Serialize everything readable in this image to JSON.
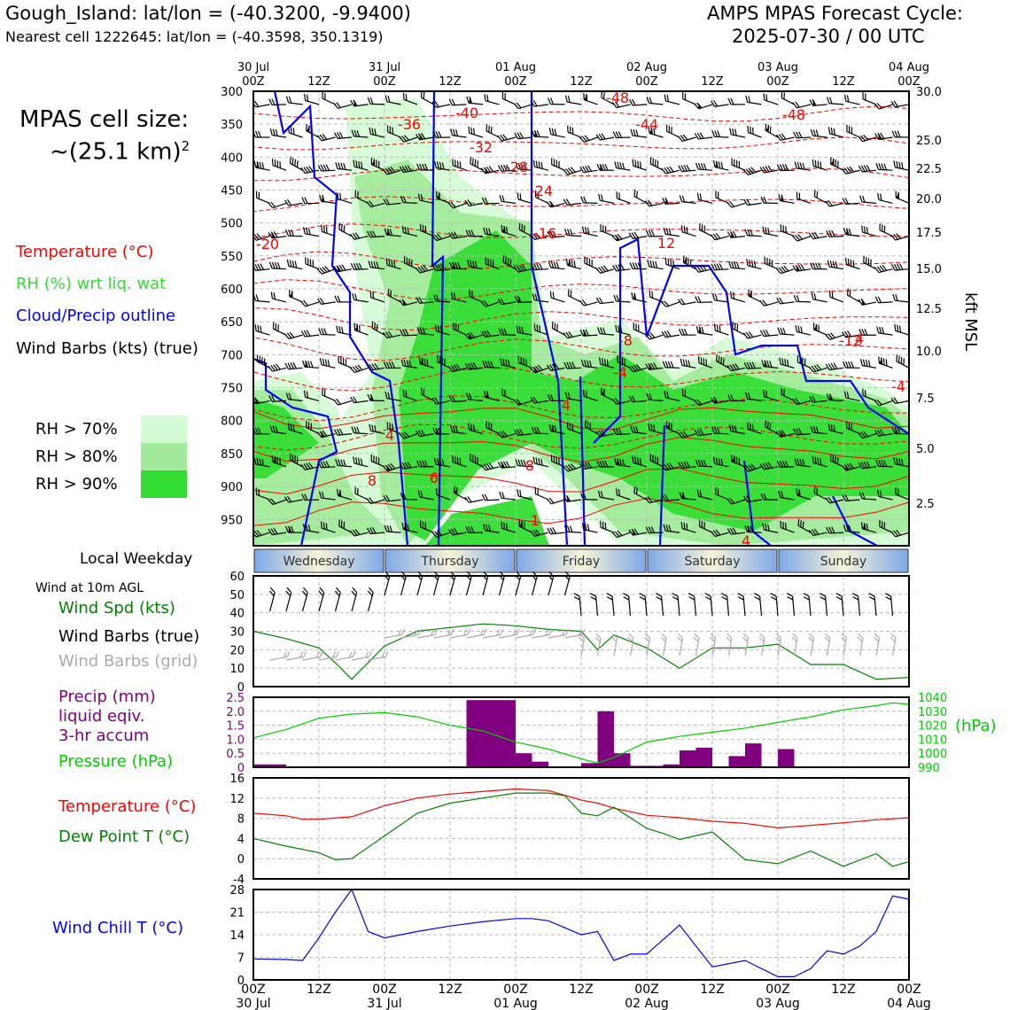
{
  "header": {
    "station_line": "Gough_Island: lat/lon = (-40.3200, -9.9400)",
    "cell_line": "Nearest cell 1222645: lat/lon = (-40.3598, 350.1319)",
    "model_title": "AMPS MPAS Forecast Cycle:",
    "model_cycle": "2025-07-30 / 00 UTC"
  },
  "left_panel": {
    "cell_size_title": "MPAS cell size:",
    "cell_size_value": "~(25.1 km)",
    "cell_size_exp": "2",
    "legend_temperature": "Temperature (°C)",
    "legend_rh": "RH (%) wrt liq. wat",
    "legend_cloud": "Cloud/Precip outline",
    "legend_wind": "Wind Barbs (kts) (true)",
    "rh_70": "RH > 70%",
    "rh_80": "RH > 80%",
    "rh_90": "RH > 90%",
    "local_weekday": "Local Weekday",
    "wind_10m": "Wind at 10m AGL",
    "wind_spd": "Wind Spd (kts)",
    "barbs_true": "Wind Barbs (true)",
    "barbs_grid": "Wind Barbs (grid)",
    "precip_1": "Precip (mm)",
    "precip_2": "liquid eqiv.",
    "precip_3": "3-hr accum",
    "pressure": "Pressure (hPa)",
    "temp": "Temperature (°C)",
    "dewpt": "Dew Point T (°C)",
    "windchill": "Wind Chill T (°C)",
    "hpa_unit": "(hPa)",
    "kft_label": "kft MSL"
  },
  "colors": {
    "rh70": "#d4fbd4",
    "rh80": "#a2eb9c",
    "rh90": "#33dd33",
    "temperature": "#ff0000",
    "dewpoint": "#008000",
    "pressure": "#00cc00",
    "precip": "#800080",
    "windchill": "#0000ff",
    "cloud": "#0000ff"
  },
  "chart_data": [
    {
      "type": "heatmap",
      "x_ticks_top": [
        {
          "day": "30 Jul",
          "hour": "00Z"
        },
        {
          "day": "",
          "hour": "12Z"
        },
        {
          "day": "31 Jul",
          "hour": "00Z"
        },
        {
          "day": "",
          "hour": "12Z"
        },
        {
          "day": "01 Aug",
          "hour": "00Z"
        },
        {
          "day": "",
          "hour": "12Z"
        },
        {
          "day": "02 Aug",
          "hour": "00Z"
        },
        {
          "day": "",
          "hour": "12Z"
        },
        {
          "day": "03 Aug",
          "hour": "00Z"
        },
        {
          "day": "",
          "hour": "12Z"
        },
        {
          "day": "04 Aug",
          "hour": "00Z"
        }
      ],
      "y_pressure_levels": [
        300,
        350,
        400,
        450,
        500,
        550,
        600,
        650,
        700,
        750,
        800,
        850,
        900,
        950
      ],
      "y_right_kft": [
        "30.0",
        "25.0",
        "22.5",
        "20.0",
        "17.5",
        "15.0",
        "12.5",
        "10.0",
        "7.5",
        "5.0",
        "2.5"
      ],
      "temperature_contour_labels": [
        "-48",
        "-48",
        "-44",
        "-40",
        "-36",
        "-32",
        "-28",
        "-24",
        "-20",
        "-16",
        "-12",
        "-8",
        "-4",
        "-4",
        "4",
        "4",
        "8",
        "8",
        "1",
        "4",
        "6",
        "12",
        "4"
      ]
    },
    {
      "type": "table",
      "weekdays": [
        "Wednesday",
        "Thursday",
        "Friday",
        "Saturday",
        "Sunday"
      ]
    },
    {
      "type": "line",
      "name": "Wind Spd (kts)",
      "x_hours": [
        0,
        6,
        12,
        15,
        18,
        24,
        30,
        36,
        42,
        48,
        54,
        60,
        63,
        66,
        72,
        78,
        84,
        90,
        96,
        102,
        108,
        114,
        120
      ],
      "values": [
        30,
        26,
        21,
        13,
        4,
        22,
        30,
        32,
        34,
        33,
        31,
        30,
        20,
        28,
        21,
        10,
        21,
        21,
        23,
        12,
        12,
        4,
        5
      ],
      "ylim": [
        0,
        60
      ],
      "yticks": [
        0,
        10,
        20,
        30,
        40,
        50,
        60
      ]
    },
    {
      "type": "bar",
      "name": "Precip (mm)",
      "x_hours": [
        0,
        3,
        39,
        42,
        45,
        48,
        51,
        60,
        63,
        66,
        69,
        72,
        75,
        78,
        81,
        84,
        87,
        90,
        93,
        96
      ],
      "values": [
        0.1,
        0.1,
        2.4,
        2.4,
        2.4,
        0.5,
        0.2,
        0.15,
        2.0,
        0.5,
        0.05,
        0.05,
        0.1,
        0.6,
        0.7,
        0.0,
        0.4,
        0.85,
        0.0,
        0.65
      ],
      "ylim": [
        0,
        2.5
      ],
      "yticks": [
        "0",
        "0.5",
        "1.0",
        "1.5",
        "2.0",
        "2.5"
      ]
    },
    {
      "type": "line",
      "name": "Pressure (hPa)",
      "x_hours": [
        0,
        6,
        12,
        18,
        24,
        30,
        36,
        42,
        48,
        54,
        60,
        63,
        66,
        72,
        78,
        84,
        90,
        96,
        102,
        108,
        114,
        117,
        120
      ],
      "values": [
        1011,
        1017,
        1025,
        1028,
        1029,
        1026,
        1020,
        1016,
        1008,
        1003,
        996,
        993,
        997,
        1008,
        1012,
        1015,
        1018,
        1022,
        1026,
        1031,
        1034,
        1036,
        1035
      ],
      "ylim": [
        990,
        1040
      ],
      "yticks": [
        "990",
        "1000",
        "1010",
        "1020",
        "1030",
        "1040"
      ]
    },
    {
      "type": "line",
      "series": [
        {
          "name": "Temperature (°C)",
          "x_hours": [
            0,
            6,
            9,
            12,
            18,
            24,
            30,
            36,
            42,
            48,
            54,
            60,
            63,
            66,
            72,
            78,
            84,
            90,
            96,
            102,
            108,
            114,
            120
          ],
          "values": [
            9,
            8.5,
            7.8,
            7.8,
            8.3,
            10.5,
            12,
            12.8,
            13.3,
            13.8,
            13.5,
            11.6,
            11,
            10,
            8.6,
            8.1,
            7.4,
            7,
            6.1,
            6.6,
            7.1,
            7.7,
            8.1
          ]
        },
        {
          "name": "Dew Point T (°C)",
          "x_hours": [
            0,
            6,
            12,
            15,
            18,
            24,
            30,
            36,
            42,
            48,
            54,
            57,
            60,
            63,
            66,
            72,
            75,
            78,
            84,
            90,
            96,
            102,
            108,
            114,
            117,
            120
          ],
          "values": [
            4,
            2.5,
            1.2,
            -0.2,
            0,
            4.5,
            9,
            11,
            12,
            13,
            13,
            12.5,
            9,
            8.5,
            10.2,
            6,
            5,
            3.8,
            5.3,
            -0.2,
            -1,
            1.5,
            -1.5,
            1,
            -1.5,
            -0.6
          ]
        }
      ],
      "ylim": [
        -4,
        16
      ],
      "yticks": [
        -4,
        0,
        4,
        8,
        12,
        16
      ]
    },
    {
      "type": "line",
      "name": "Wind Chill T (°C)",
      "x_hours": [
        0,
        6,
        9,
        12,
        15,
        18,
        21,
        24,
        30,
        36,
        42,
        48,
        51,
        54,
        60,
        63,
        66,
        69,
        72,
        78,
        84,
        90,
        96,
        99,
        102,
        105,
        108,
        111,
        114,
        117,
        120
      ],
      "values": [
        6.5,
        6.3,
        6,
        13,
        21,
        28,
        15,
        13,
        15,
        16.7,
        18,
        19,
        19,
        18.3,
        14,
        15,
        6,
        8,
        8,
        17,
        4,
        6,
        1,
        1,
        3.5,
        9,
        8,
        10.5,
        15,
        26,
        25
      ],
      "ylim": [
        0,
        28
      ],
      "yticks": [
        0,
        7,
        14,
        21,
        28
      ]
    }
  ],
  "bottom_axis": [
    {
      "hour": "00Z",
      "day": "30 Jul"
    },
    {
      "hour": "12Z",
      "day": ""
    },
    {
      "hour": "00Z",
      "day": "31 Jul"
    },
    {
      "hour": "12Z",
      "day": ""
    },
    {
      "hour": "00Z",
      "day": "01 Aug"
    },
    {
      "hour": "12Z",
      "day": ""
    },
    {
      "hour": "00Z",
      "day": "02 Aug"
    },
    {
      "hour": "12Z",
      "day": ""
    },
    {
      "hour": "00Z",
      "day": "03 Aug"
    },
    {
      "hour": "12Z",
      "day": ""
    },
    {
      "hour": "00Z",
      "day": "04 Aug"
    }
  ]
}
